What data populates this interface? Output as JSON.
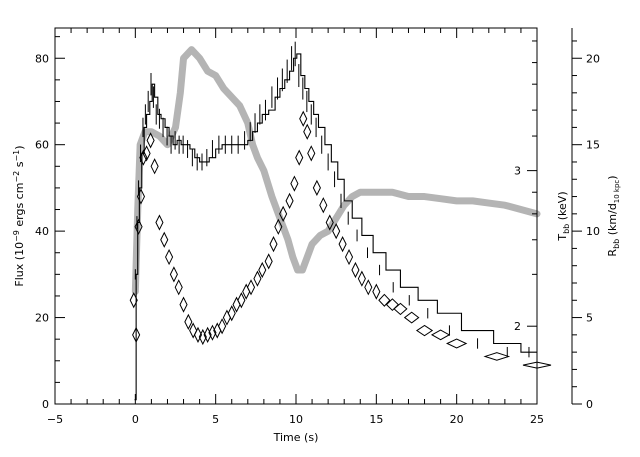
{
  "chart_data": {
    "type": "line",
    "xlabel": "Time (s)",
    "xlim": [
      -5,
      25
    ],
    "x_ticks": [
      -5,
      0,
      5,
      10,
      15,
      20,
      25
    ],
    "grid": false,
    "legend": "none",
    "left_axis": {
      "label_main": "Flux (10",
      "label_exp1": "−9",
      "label_mid": " ergs cm",
      "label_exp2": "−2",
      "label_mid2": " s",
      "label_exp3": "−1",
      "label_end": ")",
      "ylim": [
        0,
        87
      ],
      "ticks": [
        0,
        20,
        40,
        60,
        80
      ]
    },
    "temp_axis": {
      "label_main": "T",
      "label_sub": "bb",
      "label_end": " (keV)",
      "tick_labels": [
        "2",
        "3"
      ],
      "tick_flux_positions": [
        18,
        54
      ]
    },
    "radius_axis": {
      "label_main": "R",
      "label_sub": "bb",
      "label_mid": " (km/d",
      "label_sub2": "10 kpc",
      "label_end": ")",
      "ylim": [
        0,
        21.75
      ],
      "ticks": [
        0,
        5,
        10,
        15,
        20
      ]
    },
    "series": [
      {
        "values_flux": [
          [
            -0.05,
            1
          ],
          [
            0.05,
            30
          ],
          [
            0.15,
            42
          ],
          [
            0.25,
            50
          ],
          [
            0.4,
            58
          ],
          [
            0.55,
            64
          ],
          [
            0.7,
            67
          ],
          [
            0.9,
            70
          ],
          [
            1.05,
            74
          ],
          [
            1.2,
            71
          ],
          [
            1.4,
            67
          ],
          [
            1.6,
            66
          ],
          [
            1.85,
            64
          ],
          [
            2.1,
            62
          ],
          [
            2.35,
            60
          ],
          [
            2.6,
            61
          ],
          [
            2.85,
            60
          ],
          [
            3.1,
            60
          ],
          [
            3.4,
            59
          ],
          [
            3.7,
            57
          ],
          [
            4.0,
            56
          ],
          [
            4.3,
            56
          ],
          [
            4.6,
            57
          ],
          [
            5.0,
            59
          ],
          [
            5.4,
            60
          ],
          [
            5.8,
            60
          ],
          [
            6.2,
            60
          ],
          [
            6.6,
            60
          ],
          [
            7.0,
            61
          ],
          [
            7.3,
            63
          ],
          [
            7.6,
            65
          ],
          [
            7.9,
            67
          ],
          [
            8.3,
            68
          ],
          [
            8.7,
            71
          ],
          [
            9.0,
            73
          ],
          [
            9.3,
            75
          ],
          [
            9.6,
            77
          ],
          [
            9.85,
            80
          ],
          [
            10.05,
            81
          ],
          [
            10.3,
            76
          ],
          [
            10.55,
            73
          ],
          [
            10.8,
            70
          ],
          [
            11.1,
            67
          ],
          [
            11.4,
            64
          ],
          [
            11.8,
            60
          ],
          [
            12.2,
            56
          ],
          [
            12.6,
            52
          ],
          [
            13.0,
            47
          ],
          [
            13.5,
            43
          ],
          [
            14.1,
            39
          ],
          [
            14.8,
            35
          ],
          [
            15.6,
            31
          ],
          [
            16.5,
            27
          ],
          [
            17.6,
            24
          ],
          [
            18.8,
            21
          ],
          [
            20.3,
            17
          ],
          [
            22.3,
            14
          ],
          [
            24.0,
            12
          ],
          [
            25,
            12
          ]
        ]
      },
      {
        "values_flux": [
          [
            -0.1,
            24
          ],
          [
            0.05,
            16
          ],
          [
            0.2,
            41
          ],
          [
            0.35,
            48
          ],
          [
            0.5,
            57
          ],
          [
            0.7,
            58
          ],
          [
            0.95,
            61
          ],
          [
            1.2,
            55
          ],
          [
            1.5,
            42
          ],
          [
            1.8,
            38
          ],
          [
            2.1,
            34
          ],
          [
            2.4,
            30
          ],
          [
            2.7,
            27
          ],
          [
            3.0,
            23
          ],
          [
            3.3,
            19
          ],
          [
            3.6,
            17
          ],
          [
            3.9,
            16
          ],
          [
            4.2,
            15.5
          ],
          [
            4.5,
            16
          ],
          [
            4.8,
            16.5
          ],
          [
            5.1,
            17
          ],
          [
            5.4,
            18
          ],
          [
            5.7,
            20
          ],
          [
            6.0,
            21
          ],
          [
            6.3,
            23
          ],
          [
            6.6,
            24
          ],
          [
            6.9,
            26
          ],
          [
            7.2,
            27
          ],
          [
            7.6,
            29
          ],
          [
            7.9,
            31
          ],
          [
            8.3,
            33
          ],
          [
            8.6,
            37
          ],
          [
            8.9,
            41
          ],
          [
            9.2,
            44
          ],
          [
            9.6,
            47
          ],
          [
            9.9,
            51
          ],
          [
            10.2,
            57
          ],
          [
            10.45,
            66
          ],
          [
            10.7,
            63
          ],
          [
            10.95,
            58
          ],
          [
            11.3,
            50
          ],
          [
            11.7,
            46
          ],
          [
            12.1,
            42
          ],
          [
            12.5,
            40
          ],
          [
            12.9,
            37
          ],
          [
            13.3,
            34
          ],
          [
            13.7,
            31
          ],
          [
            14.1,
            29
          ],
          [
            14.5,
            27
          ],
          [
            15.0,
            26
          ],
          [
            15.5,
            24
          ],
          [
            16.0,
            23
          ],
          [
            16.5,
            22
          ],
          [
            17.2,
            20
          ],
          [
            18.0,
            17
          ],
          [
            19.0,
            16
          ],
          [
            20.0,
            14
          ],
          [
            22.5,
            11
          ],
          [
            25,
            9
          ]
        ]
      },
      {
        "values_flux": [
          [
            0.0,
            26
          ],
          [
            0.15,
            45
          ],
          [
            0.3,
            60
          ],
          [
            0.6,
            63
          ],
          [
            1.0,
            63
          ],
          [
            1.5,
            62
          ],
          [
            2.0,
            60
          ],
          [
            2.5,
            64
          ],
          [
            2.8,
            72
          ],
          [
            3.0,
            80
          ],
          [
            3.5,
            82
          ],
          [
            4.0,
            80
          ],
          [
            4.5,
            77
          ],
          [
            5.0,
            76
          ],
          [
            5.5,
            73
          ],
          [
            6.0,
            71
          ],
          [
            6.5,
            69
          ],
          [
            7.0,
            65
          ],
          [
            7.3,
            60
          ],
          [
            7.6,
            57
          ],
          [
            8.0,
            54
          ],
          [
            8.5,
            48
          ],
          [
            9.0,
            43
          ],
          [
            9.5,
            38
          ],
          [
            9.8,
            34
          ],
          [
            10.1,
            31
          ],
          [
            10.4,
            31
          ],
          [
            10.7,
            34
          ],
          [
            11.0,
            37
          ],
          [
            11.5,
            39
          ],
          [
            12.0,
            40
          ],
          [
            12.5,
            43
          ],
          [
            13.0,
            46
          ],
          [
            13.5,
            48
          ],
          [
            14.0,
            49
          ],
          [
            15.0,
            49
          ],
          [
            16.0,
            49
          ],
          [
            17.0,
            48
          ],
          [
            18.0,
            48
          ],
          [
            19.0,
            47.5
          ],
          [
            20.0,
            47
          ],
          [
            21.0,
            47
          ],
          [
            22.0,
            46.5
          ],
          [
            23.0,
            46
          ],
          [
            24.0,
            45
          ],
          [
            25.0,
            44
          ]
        ]
      }
    ]
  }
}
